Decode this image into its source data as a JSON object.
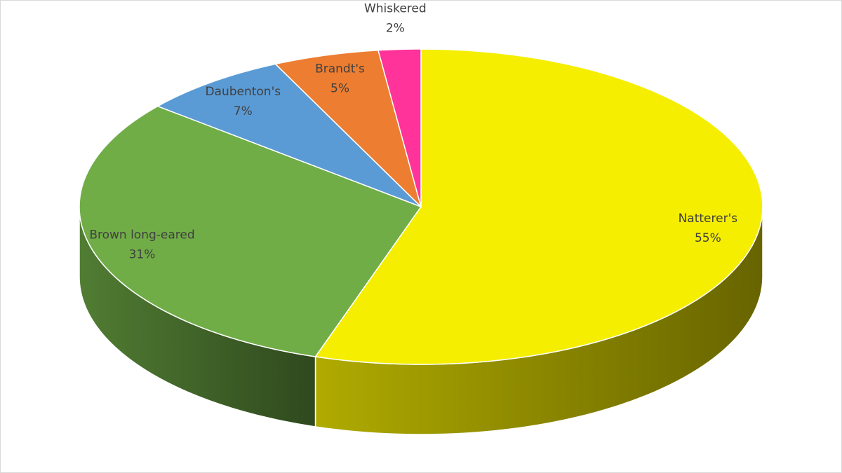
{
  "chart_data": {
    "type": "pie",
    "view": "3d",
    "categories": [
      "Natterer's",
      "Brown long-eared",
      "Daubenton's",
      "Brandt's",
      "Whiskered"
    ],
    "values": [
      55,
      31,
      7,
      5,
      2
    ],
    "value_labels": [
      "55%",
      "31%",
      "7%",
      "5%",
      "2%"
    ],
    "colors": [
      "#f5ee00",
      "#70ad47",
      "#5b9bd5",
      "#ed7d31",
      "#ff3399"
    ]
  }
}
